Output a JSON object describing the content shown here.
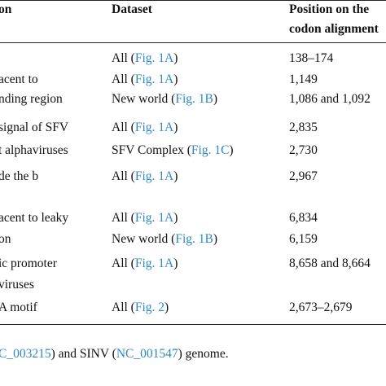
{
  "table": {
    "header": {
      "location": "on",
      "dataset": "Dataset",
      "position": [
        "Position on the",
        "codon alignment"
      ]
    },
    "rows": [
      {
        "dataset": {
          "text": "All (",
          "link": "Fig. 1A",
          "end": ")"
        },
        "position": "138–174"
      },
      {
        "location": "acent to",
        "dataset": {
          "text": "All (",
          "link": "Fig. 1A",
          "end": ")"
        },
        "position": "1,149"
      },
      {
        "location": "nding region",
        "dataset": {
          "text": "New world (",
          "link": "Fig. 1B",
          "end": ")"
        },
        "position": "1,086 and 1,092"
      },
      {
        "location": "signal of SFV",
        "dataset": {
          "text": "All (",
          "link": "Fig. 1A",
          "end": ")"
        },
        "position": "2,835"
      },
      {
        "location": "t alphaviruses",
        "dataset": {
          "text": "SFV Complex (",
          "link": "Fig. 1C",
          "end": ")"
        },
        "position": "2,730"
      },
      {
        "location": "de the b",
        "dataset": {
          "text": "All (",
          "link": "Fig. 1A",
          "end": ")"
        },
        "position": "2,967"
      },
      {
        "location": "acent to leaky",
        "dataset": {
          "text": "All (",
          "link": "Fig. 1A",
          "end": ")"
        },
        "position": "6,834"
      },
      {
        "location": "on",
        "dataset": {
          "text": "New world (",
          "link": "Fig. 1B",
          "end": ")"
        },
        "position": "6,159"
      },
      {
        "location": "ic promoter",
        "dataset": {
          "text": "All (",
          "link": "Fig. 1A",
          "end": ")"
        },
        "position": "8,658 and 8,664"
      },
      {
        "location": "viruses"
      },
      {
        "location": "A motif",
        "dataset": {
          "text": "All (",
          "link": "Fig. 2",
          "end": ")"
        },
        "position": "2,673–2,679"
      }
    ]
  },
  "footnote": [
    {
      "link": "C_003215"
    },
    {
      "text": ") and SINV ("
    },
    {
      "link": "NC_001547"
    },
    {
      "text": ") genome."
    }
  ]
}
